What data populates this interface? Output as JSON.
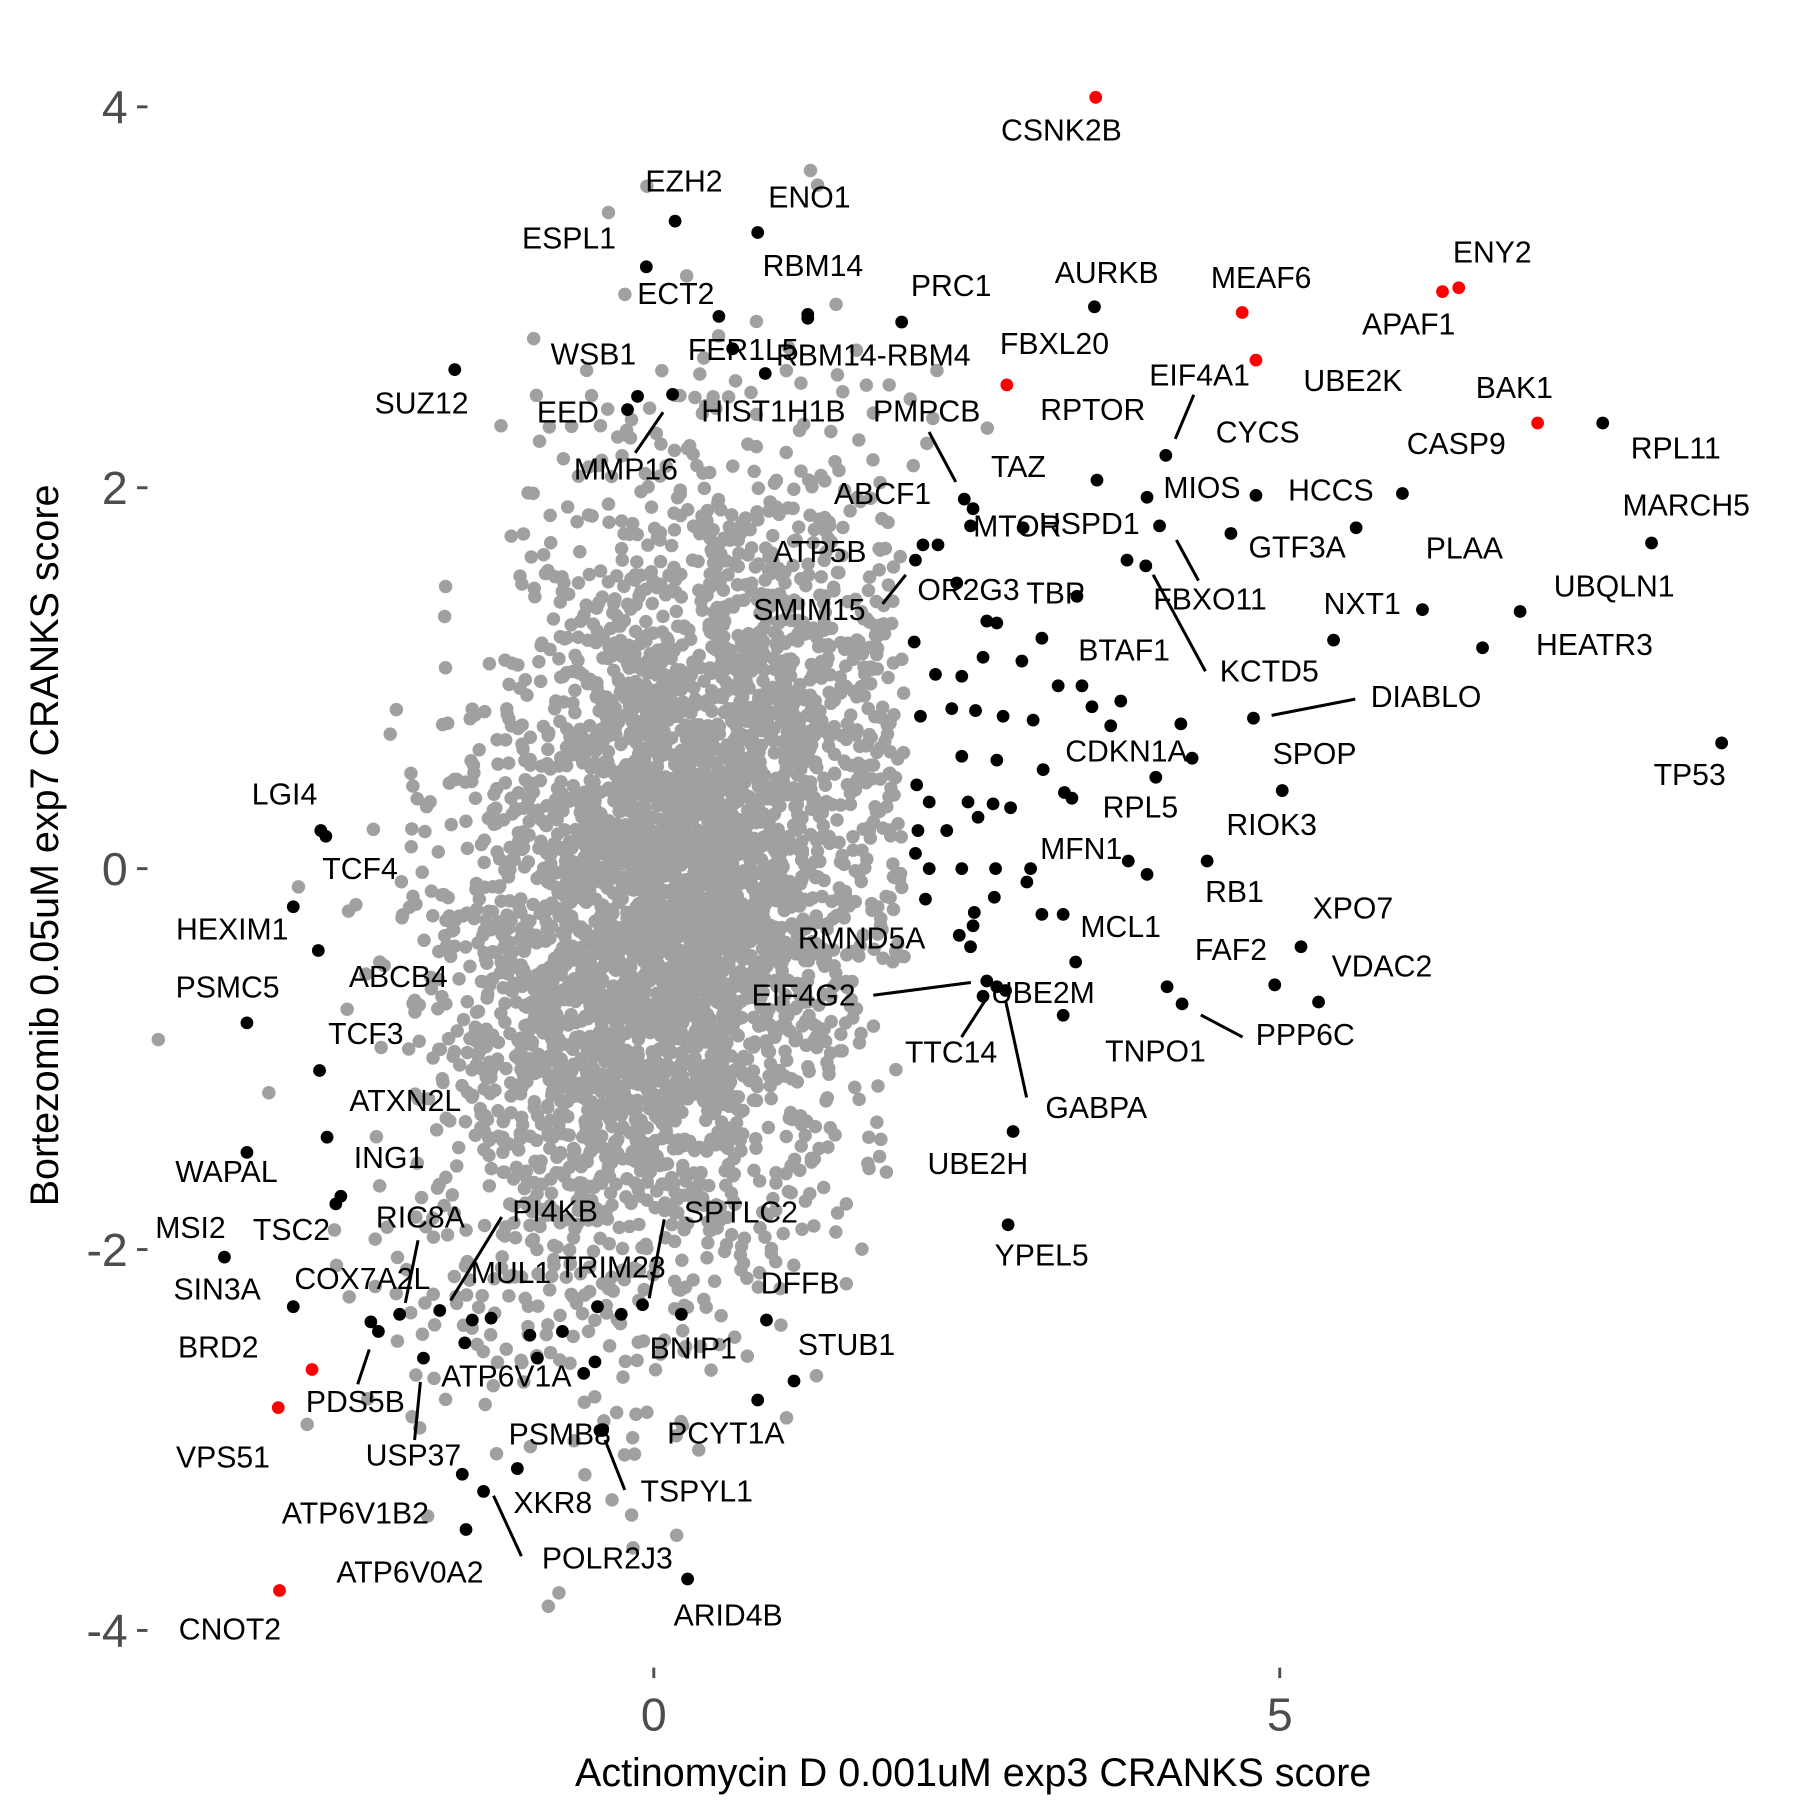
{
  "chart_data": {
    "type": "scatter",
    "title": "",
    "xlabel": "Actinomycin D 0.001uM exp3 CRANKS score",
    "ylabel": "Bortezomib 0.05uM exp7 CRANKS score",
    "xticks": [
      0,
      5
    ],
    "yticks": [
      -4,
      -2,
      0,
      2,
      4
    ],
    "xlim": [
      -3.8,
      8.8
    ],
    "ylim": [
      -4.1,
      4.2
    ],
    "grid": false,
    "colors": {
      "background_points": "#a0a0a0",
      "hit": "#000000",
      "highlight": "#ff0000",
      "tick_text": "#4d4d4d"
    },
    "highlighted_points": [
      [
        "CSNK2B",
        3.53,
        4.05
      ],
      [
        "MEAF6",
        4.7,
        2.92
      ],
      [
        "ENY2",
        6.43,
        3.05
      ],
      [
        "APAF1",
        6.3,
        3.03
      ],
      [
        "FBXL20",
        2.82,
        2.54
      ],
      [
        "UBE2K",
        4.81,
        2.67
      ],
      [
        "BAK1",
        7.06,
        2.34
      ],
      [
        "BRD2",
        -2.73,
        -2.63
      ],
      [
        "VPS51",
        -3.0,
        -2.83
      ],
      [
        "CNOT2",
        -2.99,
        -3.79
      ]
    ],
    "labeled_points": [
      [
        "EZH2",
        0.17,
        3.4
      ],
      [
        "ENO1",
        0.83,
        3.34
      ],
      [
        "ESPL1",
        -0.06,
        3.16
      ],
      [
        "RBM14",
        1.23,
        2.91
      ],
      [
        "ECT2",
        0.52,
        2.9
      ],
      [
        "PRC1",
        1.98,
        2.87
      ],
      [
        "AURKB",
        3.52,
        2.95
      ],
      [
        "FER1L5",
        0.63,
        2.73
      ],
      [
        "RBM14-RBM4",
        1.23,
        2.89
      ],
      [
        "HIST1H1B",
        0.89,
        2.6
      ],
      [
        "WSB1",
        -0.13,
        2.48
      ],
      [
        "SUZ12",
        -1.59,
        2.62
      ],
      [
        "EED",
        -0.21,
        2.41
      ],
      [
        "MMP16",
        0.15,
        2.49
      ],
      [
        "PMPCB",
        2.48,
        1.94
      ],
      [
        "RPTOR",
        3.54,
        2.04
      ],
      [
        "EIF4A1",
        4.09,
        2.17
      ],
      [
        "CYCS",
        4.81,
        1.96
      ],
      [
        "MIOS",
        3.94,
        1.95
      ],
      [
        "HCCS",
        5.61,
        1.79
      ],
      [
        "CASP9",
        5.98,
        1.97
      ],
      [
        "RPL11",
        7.58,
        2.34
      ],
      [
        "MARCH5",
        7.97,
        1.71
      ],
      [
        "TAZ",
        2.95,
        1.79
      ],
      [
        "ABCF1",
        2.55,
        1.89
      ],
      [
        "MTOR",
        2.53,
        1.8
      ],
      [
        "HSPD1",
        4.04,
        1.8
      ],
      [
        "GTF3A",
        4.61,
        1.76
      ],
      [
        "PLAA",
        6.14,
        1.36
      ],
      [
        "ATP5B",
        2.27,
        1.7
      ],
      [
        "OR2G3",
        2.42,
        1.5
      ],
      [
        "SMIM15",
        2.09,
        1.62
      ],
      [
        "TBP",
        3.38,
        1.43
      ],
      [
        "FBXO11",
        3.78,
        1.62
      ],
      [
        "KCTD5",
        3.93,
        1.59
      ],
      [
        "NXT1",
        5.43,
        1.2
      ],
      [
        "UBQLN1",
        6.92,
        1.35
      ],
      [
        "HEATR3",
        6.62,
        1.16
      ],
      [
        "BTAF1",
        3.23,
        0.96
      ],
      [
        "DIABLO",
        4.79,
        0.79
      ],
      [
        "TP53",
        8.53,
        0.66
      ],
      [
        "CDKN1A",
        4.3,
        0.58
      ],
      [
        "SPOP",
        5.02,
        0.41
      ],
      [
        "RPL5",
        4.01,
        0.48
      ],
      [
        "RIOK3",
        4.42,
        0.04
      ],
      [
        "MFN1",
        3.79,
        0.04
      ],
      [
        "RB1",
        3.94,
        -0.03
      ],
      [
        "XPO7",
        5.17,
        -0.41
      ],
      [
        "MCL1",
        3.27,
        -0.24
      ],
      [
        "FAF2",
        4.96,
        -0.61
      ],
      [
        "VDAC2",
        5.31,
        -0.7
      ],
      [
        "RMND5A",
        2.44,
        -0.35
      ],
      [
        "EIF4G2",
        2.66,
        -0.59
      ],
      [
        "UBE2M",
        2.74,
        -0.62
      ],
      [
        "PPP6C",
        4.22,
        -0.71
      ],
      [
        "TNPO1",
        4.1,
        -0.62
      ],
      [
        "TTC14",
        2.63,
        -0.67
      ],
      [
        "GABPA",
        2.81,
        -0.64
      ],
      [
        "UBE2H",
        2.87,
        -1.38
      ],
      [
        "YPEL5",
        2.83,
        -1.87
      ],
      [
        "LGI4",
        -2.66,
        0.2
      ],
      [
        "TCF4",
        -2.62,
        0.17
      ],
      [
        "HEXIM1",
        -2.88,
        -0.2
      ],
      [
        "PSMC5",
        -3.25,
        -0.81
      ],
      [
        "ABCB4",
        -2.68,
        -0.43
      ],
      [
        "TCF3",
        -2.67,
        -1.06
      ],
      [
        "ATXN2L",
        -2.61,
        -1.41
      ],
      [
        "WAPAL",
        -3.25,
        -1.49
      ],
      [
        "ING1",
        -2.5,
        -1.72
      ],
      [
        "MSI2",
        -3.43,
        -2.04
      ],
      [
        "TSC2",
        -2.54,
        -1.76
      ],
      [
        "RIC8A",
        -2.03,
        -2.34
      ],
      [
        "PI4KB",
        -1.71,
        -2.32
      ],
      [
        "SPTLC2",
        -0.09,
        -2.29
      ],
      [
        "COX7A2L",
        -2.26,
        -2.38
      ],
      [
        "MUL1",
        -1.45,
        -2.37
      ],
      [
        "TRIM23",
        -0.45,
        -2.3
      ],
      [
        "SIN3A",
        -2.88,
        -2.3
      ],
      [
        "DFFB",
        0.9,
        -2.37
      ],
      [
        "BNIP1",
        0.22,
        -2.34
      ],
      [
        "STUB1",
        1.12,
        -2.69
      ],
      [
        "PDS5B",
        -2.2,
        -2.43
      ],
      [
        "ATP6V1A",
        -0.93,
        -2.57
      ],
      [
        "USP37",
        -1.84,
        -2.57
      ],
      [
        "PCYT1A",
        0.83,
        -2.79
      ],
      [
        "PSMB8",
        -0.43,
        -2.95
      ],
      [
        "TSPYL1",
        -0.41,
        -2.95
      ],
      [
        "XKR8",
        -1.09,
        -3.15
      ],
      [
        "ATP6V1B2",
        -1.53,
        -3.18
      ],
      [
        "POLR2J3",
        -1.36,
        -3.27
      ],
      [
        "ATP6V0A2",
        -1.5,
        -3.47
      ],
      [
        "ARID4B",
        0.27,
        -3.73
      ]
    ],
    "unlabeled_hits": [
      [
        2.15,
        1.7
      ],
      [
        2.66,
        1.3
      ],
      [
        2.74,
        1.29
      ],
      [
        3.1,
        1.21
      ],
      [
        2.08,
        1.19
      ],
      [
        2.25,
        1.02
      ],
      [
        2.46,
        1.01
      ],
      [
        2.63,
        1.11
      ],
      [
        2.94,
        1.09
      ],
      [
        2.13,
        0.8
      ],
      [
        2.38,
        0.84
      ],
      [
        2.57,
        0.83
      ],
      [
        2.79,
        0.8
      ],
      [
        3.03,
        0.78
      ],
      [
        3.42,
        0.96
      ],
      [
        3.5,
        0.85
      ],
      [
        3.73,
        0.88
      ],
      [
        3.65,
        0.75
      ],
      [
        4.21,
        0.76
      ],
      [
        2.46,
        0.59
      ],
      [
        2.74,
        0.57
      ],
      [
        3.11,
        0.52
      ],
      [
        2.1,
        0.44
      ],
      [
        2.2,
        0.35
      ],
      [
        2.51,
        0.35
      ],
      [
        2.71,
        0.34
      ],
      [
        2.85,
        0.32
      ],
      [
        3.28,
        0.4
      ],
      [
        3.34,
        0.37
      ],
      [
        2.11,
        0.2
      ],
      [
        2.34,
        0.2
      ],
      [
        2.59,
        0.27
      ],
      [
        2.09,
        0.08
      ],
      [
        2.2,
        0.0
      ],
      [
        2.46,
        0.0
      ],
      [
        2.73,
        0.0
      ],
      [
        3.01,
        0.0
      ],
      [
        2.17,
        -0.16
      ],
      [
        2.56,
        -0.23
      ],
      [
        2.72,
        -0.15
      ],
      [
        2.98,
        -0.07
      ],
      [
        3.1,
        -0.24
      ],
      [
        2.55,
        -0.3
      ],
      [
        2.53,
        -0.41
      ],
      [
        3.37,
        -0.49
      ],
      [
        3.27,
        -0.77
      ],
      [
        -1.3,
        -2.36
      ],
      [
        -1.51,
        -2.49
      ],
      [
        -0.99,
        -2.45
      ],
      [
        -0.73,
        -2.43
      ],
      [
        -0.56,
        -2.65
      ],
      [
        -0.47,
        -2.59
      ],
      [
        -0.26,
        -2.34
      ]
    ]
  }
}
